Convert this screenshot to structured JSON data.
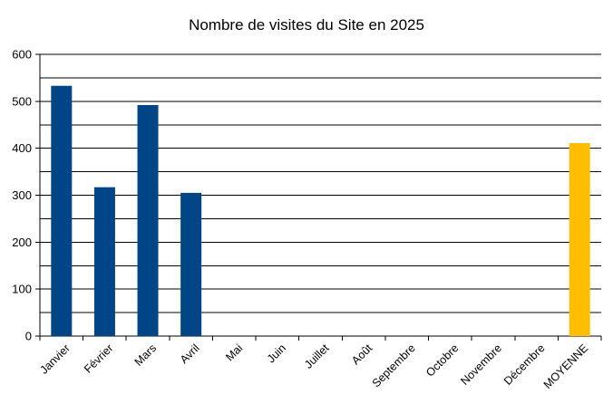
{
  "chart_data": {
    "type": "bar",
    "title": "Nombre de visites du Site en 2025",
    "categories": [
      "Janvier",
      "Février",
      "Mars",
      "Avril",
      "Mai",
      "Juin",
      "Juillet",
      "Août",
      "Septembre",
      "Octobre",
      "Novembre",
      "Décembre",
      "MOYENNE"
    ],
    "values": [
      533,
      317,
      492,
      305,
      null,
      null,
      null,
      null,
      null,
      null,
      null,
      null,
      411
    ],
    "ylim": [
      0,
      600
    ],
    "yticks": [
      0,
      100,
      200,
      300,
      400,
      500,
      600
    ],
    "grid": true,
    "legend": "none",
    "colors": {
      "bar": "#004586",
      "average": "#FFBF00",
      "grid": "#000000"
    }
  }
}
